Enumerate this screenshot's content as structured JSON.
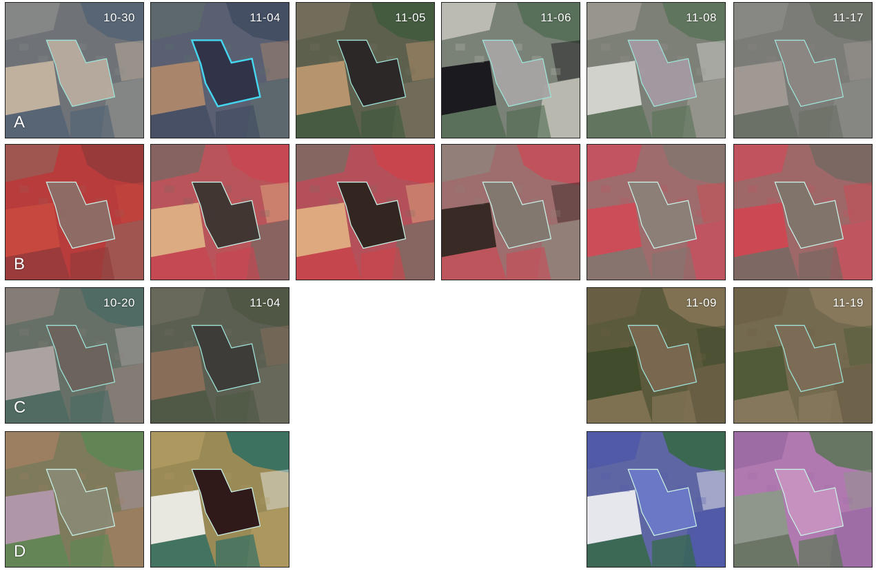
{
  "figure": {
    "rows": [
      {
        "label": "A",
        "tiles": [
          {
            "date": "10-30",
            "palette": {
              "bg": "#6f7378",
              "field": "#b8aca0",
              "a": "#c9b7a2",
              "b": "#4f6073",
              "c": "#8a8b88",
              "outline": "#9fe3d9"
            }
          },
          {
            "date": "11-04",
            "palette": {
              "bg": "#5a6072",
              "field": "#2f3146",
              "a": "#b08a6a",
              "b": "#3e4a60",
              "c": "#5d6a6b",
              "outline": "#45d6f0"
            }
          },
          {
            "date": "11-05",
            "palette": {
              "bg": "#5e604e",
              "field": "#2a2526",
              "a": "#c09a72",
              "b": "#3c5a3c",
              "c": "#756f5e",
              "outline": "#9fe3d9"
            }
          },
          {
            "date": "11-06",
            "palette": {
              "bg": "#7a8177",
              "field": "#a6a4a4",
              "a": "#111015",
              "b": "#4d6a4f",
              "c": "#c8c6bd",
              "outline": "#9fe3d9"
            }
          },
          {
            "date": "11-08",
            "palette": {
              "bg": "#7d8077",
              "field": "#a49aa2",
              "a": "#dcdad6",
              "b": "#577255",
              "c": "#9b9991",
              "outline": "#9fe3d9"
            }
          },
          {
            "date": "11-17",
            "palette": {
              "bg": "#7b7b77",
              "field": "#8d8784",
              "a": "#a39b96",
              "b": "#676e63",
              "c": "#8a8985",
              "outline": "#9fe3d9"
            }
          }
        ]
      },
      {
        "label": "B",
        "tiles": [
          {
            "date": "",
            "palette": {
              "bg": "#b83c3c",
              "field": "#8b6e66",
              "a": "#c8493f",
              "b": "#8f3a3a",
              "c": "#9a5b55",
              "outline": "#c9efe6"
            }
          },
          {
            "date": "",
            "palette": {
              "bg": "#b8545a",
              "field": "#3a3530",
              "a": "#e0b586",
              "b": "#c94450",
              "c": "#7d6662",
              "outline": "#c9efe6"
            }
          },
          {
            "date": "",
            "palette": {
              "bg": "#b3505a",
              "field": "#2c241f",
              "a": "#e2b283",
              "b": "#cf4249",
              "c": "#7c6a63",
              "outline": "#c9efe6"
            }
          },
          {
            "date": "",
            "palette": {
              "bg": "#9e6e6e",
              "field": "#82786f",
              "a": "#2e221e",
              "b": "#cb4a55",
              "c": "#8f837b",
              "outline": "#c9efe6"
            }
          },
          {
            "date": "",
            "palette": {
              "bg": "#9e6c6c",
              "field": "#8a8178",
              "a": "#d04a55",
              "b": "#7f7770",
              "c": "#c85060",
              "outline": "#c9efe6"
            }
          },
          {
            "date": "",
            "palette": {
              "bg": "#9e6868",
              "field": "#7e756c",
              "a": "#d04652",
              "b": "#6f6861",
              "c": "#c6505c",
              "outline": "#c9efe6"
            }
          }
        ]
      },
      {
        "label": "C",
        "tiles": [
          {
            "date": "10-20",
            "palette": {
              "bg": "#667067",
              "field": "#6c625c",
              "a": "#b2a8a8",
              "b": "#486a62",
              "c": "#8a7f79",
              "outline": "#9fe3d9"
            }
          },
          {
            "date": "11-04",
            "palette": {
              "bg": "#5b5f52",
              "field": "#3c3a38",
              "a": "#8d6f5a",
              "b": "#4c5642",
              "c": "#6b6a5d",
              "outline": "#9fe3d9"
            }
          },
          null,
          null,
          {
            "date": "11-09",
            "palette": {
              "bg": "#5c5a3c",
              "field": "#7a6850",
              "a": "#3d4a2a",
              "b": "#8b7a5a",
              "c": "#6a5f45",
              "outline": "#9fe3d9"
            }
          },
          {
            "date": "11-19",
            "palette": {
              "bg": "#746a50",
              "field": "#7d6d55",
              "a": "#4e5a36",
              "b": "#8d7e60",
              "c": "#6d6048",
              "outline": "#9fe3d9"
            }
          }
        ]
      },
      {
        "label": "D",
        "tiles": [
          {
            "date": "",
            "palette": {
              "bg": "#7e7a5c",
              "field": "#8a8a74",
              "a": "#b69ab0",
              "b": "#5a8a54",
              "c": "#a08060",
              "outline": "#c9efe6"
            }
          },
          {
            "date": "",
            "palette": {
              "bg": "#9a8a56",
              "field": "#2a1416",
              "a": "#f2f2f0",
              "b": "#1e6a66",
              "c": "#b09a62",
              "outline": "#c9efe6"
            }
          },
          null,
          null,
          {
            "date": "",
            "palette": {
              "bg": "#5f66a4",
              "field": "#6b79c8",
              "a": "#f5f5f5",
              "b": "#2e6a35",
              "c": "#4e58a8",
              "outline": "#c9efe6"
            }
          },
          {
            "date": "",
            "palette": {
              "bg": "#b07ab0",
              "field": "#c792c0",
              "a": "#8c9a88",
              "b": "#4e7548",
              "c": "#9b6aa2",
              "outline": "#c9efe6"
            }
          }
        ]
      }
    ]
  }
}
